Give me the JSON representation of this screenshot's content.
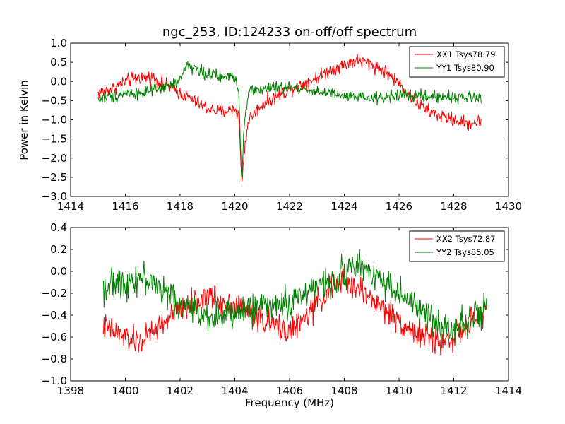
{
  "chart_data": [
    {
      "type": "line",
      "title": "ngc_253, ID:124233 on-off/off spectrum",
      "xlabel": "",
      "ylabel": "Power in Kelvin",
      "xlim": [
        1414,
        1430
      ],
      "ylim": [
        -3.0,
        1.0
      ],
      "xticks": [
        "1414",
        "1416",
        "1418",
        "1420",
        "1422",
        "1424",
        "1426",
        "1428",
        "1430"
      ],
      "yticks": [
        "1.0",
        "0.5",
        "0.0",
        "−0.5",
        "−1.0",
        "−1.5",
        "−2.0",
        "−2.5",
        "−3.0"
      ],
      "legend_position": "top-right",
      "x_range": [
        1415.0,
        1429.0
      ],
      "series": [
        {
          "name": "XX1 Tsys78.79",
          "color": "#ff0000",
          "noise": 0.09,
          "profile": [
            [
              1415.0,
              -0.3
            ],
            [
              1415.5,
              -0.2
            ],
            [
              1416.0,
              0.0
            ],
            [
              1416.5,
              0.1
            ],
            [
              1417.0,
              0.1
            ],
            [
              1417.5,
              -0.1
            ],
            [
              1418.0,
              -0.3
            ],
            [
              1418.5,
              -0.5
            ],
            [
              1419.0,
              -0.7
            ],
            [
              1419.5,
              -0.8
            ],
            [
              1420.0,
              -0.7
            ],
            [
              1420.15,
              -0.9
            ],
            [
              1420.25,
              -2.7
            ],
            [
              1420.35,
              -1.8
            ],
            [
              1420.5,
              -1.0
            ],
            [
              1421.0,
              -0.6
            ],
            [
              1421.5,
              -0.4
            ],
            [
              1422.0,
              -0.2
            ],
            [
              1422.5,
              -0.05
            ],
            [
              1423.0,
              0.1
            ],
            [
              1423.5,
              0.3
            ],
            [
              1424.0,
              0.45
            ],
            [
              1424.5,
              0.55
            ],
            [
              1425.0,
              0.45
            ],
            [
              1425.5,
              0.25
            ],
            [
              1426.0,
              -0.05
            ],
            [
              1426.5,
              -0.45
            ],
            [
              1427.0,
              -0.75
            ],
            [
              1427.5,
              -0.9
            ],
            [
              1428.0,
              -1.0
            ],
            [
              1428.5,
              -1.1
            ],
            [
              1429.0,
              -1.05
            ]
          ]
        },
        {
          "name": "YY1 Tsys80.90",
          "color": "#008000",
          "noise": 0.08,
          "profile": [
            [
              1415.0,
              -0.45
            ],
            [
              1415.5,
              -0.4
            ],
            [
              1416.0,
              -0.3
            ],
            [
              1416.5,
              -0.3
            ],
            [
              1417.0,
              -0.25
            ],
            [
              1417.5,
              -0.15
            ],
            [
              1418.0,
              0.0
            ],
            [
              1418.2,
              0.45
            ],
            [
              1418.5,
              0.35
            ],
            [
              1419.0,
              0.2
            ],
            [
              1419.5,
              0.1
            ],
            [
              1420.0,
              0.15
            ],
            [
              1420.15,
              -0.3
            ],
            [
              1420.25,
              -2.6
            ],
            [
              1420.35,
              -1.0
            ],
            [
              1420.5,
              -0.25
            ],
            [
              1421.0,
              -0.2
            ],
            [
              1422.0,
              -0.15
            ],
            [
              1423.0,
              -0.25
            ],
            [
              1424.0,
              -0.4
            ],
            [
              1425.0,
              -0.45
            ],
            [
              1426.0,
              -0.35
            ],
            [
              1427.0,
              -0.4
            ],
            [
              1428.0,
              -0.4
            ],
            [
              1429.0,
              -0.45
            ]
          ]
        }
      ]
    },
    {
      "type": "line",
      "title": "",
      "xlabel": "Frequency (MHz)",
      "ylabel": "",
      "xlim": [
        1398,
        1414
      ],
      "ylim": [
        -1.0,
        0.4
      ],
      "xticks": [
        "1398",
        "1400",
        "1402",
        "1404",
        "1406",
        "1408",
        "1410",
        "1412",
        "1414"
      ],
      "yticks": [
        "0.4",
        "0.2",
        "0.0",
        "−0.2",
        "−0.4",
        "−0.6",
        "−0.8",
        "−1.0"
      ],
      "legend_position": "top-right",
      "x_range": [
        1399.2,
        1413.2
      ],
      "series": [
        {
          "name": "XX2 Tsys72.87",
          "color": "#ff0000",
          "noise": 0.06,
          "profile": [
            [
              1399.2,
              -0.5
            ],
            [
              1400.0,
              -0.6
            ],
            [
              1400.5,
              -0.65
            ],
            [
              1401.0,
              -0.55
            ],
            [
              1401.5,
              -0.45
            ],
            [
              1402.0,
              -0.35
            ],
            [
              1402.5,
              -0.3
            ],
            [
              1403.0,
              -0.22
            ],
            [
              1403.5,
              -0.28
            ],
            [
              1404.0,
              -0.3
            ],
            [
              1404.5,
              -0.35
            ],
            [
              1405.0,
              -0.45
            ],
            [
              1405.5,
              -0.5
            ],
            [
              1406.0,
              -0.55
            ],
            [
              1406.5,
              -0.45
            ],
            [
              1407.0,
              -0.3
            ],
            [
              1407.5,
              -0.15
            ],
            [
              1408.0,
              -0.1
            ],
            [
              1408.5,
              -0.15
            ],
            [
              1409.0,
              -0.25
            ],
            [
              1409.5,
              -0.35
            ],
            [
              1410.0,
              -0.45
            ],
            [
              1410.5,
              -0.55
            ],
            [
              1411.0,
              -0.6
            ],
            [
              1411.5,
              -0.65
            ],
            [
              1412.0,
              -0.6
            ],
            [
              1412.5,
              -0.5
            ],
            [
              1413.2,
              -0.35
            ]
          ]
        },
        {
          "name": "YY2 Tsys85.05",
          "color": "#008000",
          "noise": 0.07,
          "profile": [
            [
              1399.2,
              -0.15
            ],
            [
              1400.0,
              -0.1
            ],
            [
              1400.5,
              -0.05
            ],
            [
              1401.0,
              -0.1
            ],
            [
              1401.5,
              -0.2
            ],
            [
              1402.0,
              -0.3
            ],
            [
              1402.5,
              -0.35
            ],
            [
              1403.0,
              -0.4
            ],
            [
              1403.5,
              -0.42
            ],
            [
              1404.0,
              -0.38
            ],
            [
              1404.5,
              -0.35
            ],
            [
              1405.0,
              -0.3
            ],
            [
              1405.5,
              -0.3
            ],
            [
              1406.0,
              -0.3
            ],
            [
              1406.5,
              -0.2
            ],
            [
              1407.0,
              -0.15
            ],
            [
              1407.5,
              -0.1
            ],
            [
              1408.0,
              0.0
            ],
            [
              1408.5,
              0.05
            ],
            [
              1409.0,
              0.0
            ],
            [
              1409.5,
              -0.1
            ],
            [
              1410.0,
              -0.2
            ],
            [
              1410.5,
              -0.3
            ],
            [
              1411.0,
              -0.4
            ],
            [
              1411.5,
              -0.5
            ],
            [
              1412.0,
              -0.5
            ],
            [
              1412.5,
              -0.45
            ],
            [
              1413.2,
              -0.35
            ]
          ]
        }
      ]
    }
  ]
}
